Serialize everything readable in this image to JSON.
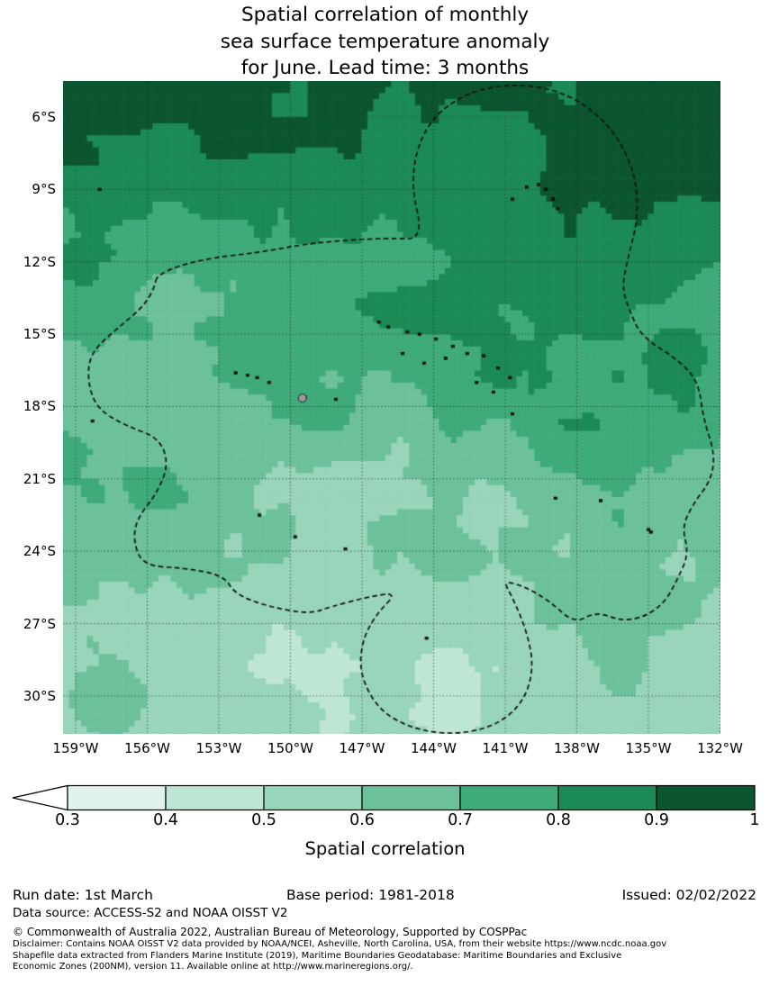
{
  "title": {
    "line1": "Spatial correlation of monthly",
    "line2": "sea surface temperature anomaly",
    "line3": "for June. Lead time: 3 months"
  },
  "axes": {
    "lat_labels": [
      "6°S",
      "9°S",
      "12°S",
      "15°S",
      "18°S",
      "21°S",
      "24°S",
      "27°S",
      "30°S"
    ],
    "lon_labels": [
      "159°W",
      "156°W",
      "153°W",
      "150°W",
      "147°W",
      "144°W",
      "141°W",
      "138°W",
      "135°W",
      "132°W"
    ]
  },
  "colorbar": {
    "label": "Spatial correlation",
    "tick_labels": [
      "0.3",
      "0.4",
      "0.5",
      "0.6",
      "0.7",
      "0.8",
      "0.9",
      "1"
    ],
    "arrow_color": "#ffffff",
    "border_color": "#000000"
  },
  "footer": {
    "run_date": "Run date: 1st March",
    "base_period": "Base period: 1981-2018",
    "issued": "Issued: 02/02/2022",
    "data_source": "Data source: ACCESS-S2 and NOAA OISST V2",
    "copyright": "© Commonwealth of Australia 2022, Australian Bureau of Meteorology, Supported by COSPPac",
    "disclaimer1": "Disclaimer: Contains NOAA OISST V2 data provided by NOAA/NCEI, Asheville, North Carolina, USA, from their website https://www.ncdc.noaa.gov",
    "disclaimer2": "Shapefile data extracted from Flanders Marine Institute (2019), Maritime Boundaries Geodatabase: Maritime Boundaries and Exclusive",
    "disclaimer3": "Economic Zones (200NM), version 11. Available online at http://www.marineregions.org/."
  },
  "chart_data": {
    "type": "heatmap",
    "title": "Spatial correlation of monthly sea surface temperature anomaly for June. Lead time: 3 months",
    "month": "June",
    "lead_time_months": 3,
    "colorbar_label": "Spatial correlation",
    "levels": [
      0.3,
      0.4,
      0.5,
      0.6,
      0.7,
      0.8,
      0.9,
      1.0
    ],
    "level_colors": [
      "#dff3ec",
      "#bfe6d5",
      "#98d5ba",
      "#6cc19c",
      "#3faa7a",
      "#1c8a55",
      "#0b5530"
    ],
    "under_arrow_color": "#ffffff",
    "lon_range_w": [
      159.53,
      131.98
    ],
    "lat_range_s": [
      4.51,
      31.57
    ],
    "lon_ticks_w": [
      159,
      156,
      153,
      150,
      147,
      144,
      141,
      138,
      135,
      132
    ],
    "lat_ticks_s": [
      6,
      9,
      12,
      15,
      18,
      21,
      24,
      27,
      30
    ],
    "grid": true,
    "lat_band_mean_correlation": {
      "5S": 0.87,
      "10S": 0.82,
      "15S": 0.75,
      "20S": 0.66,
      "25S": 0.59,
      "30S": 0.54
    },
    "eez_boundary_lonw_lats": [
      [
        155.6,
        12.5
      ],
      [
        153.8,
        11.9
      ],
      [
        151.2,
        11.6
      ],
      [
        149.0,
        11.2
      ],
      [
        145.9,
        11.0
      ],
      [
        144.4,
        11.1
      ],
      [
        145.0,
        8.6
      ],
      [
        144.4,
        6.4
      ],
      [
        142.9,
        5.1
      ],
      [
        140.9,
        4.6
      ],
      [
        138.6,
        4.9
      ],
      [
        136.7,
        6.2
      ],
      [
        135.6,
        8.1
      ],
      [
        135.4,
        10.1
      ],
      [
        135.9,
        12.0
      ],
      [
        136.1,
        13.1
      ],
      [
        135.8,
        14.0
      ],
      [
        135.3,
        15.1
      ],
      [
        133.7,
        16.1
      ],
      [
        132.9,
        17.0
      ],
      [
        132.7,
        18.5
      ],
      [
        132.2,
        20.0
      ],
      [
        132.4,
        21.1
      ],
      [
        133.1,
        22.0
      ],
      [
        133.6,
        23.0
      ],
      [
        133.3,
        24.1
      ],
      [
        133.8,
        25.2
      ],
      [
        134.3,
        26.1
      ],
      [
        135.1,
        26.7
      ],
      [
        136.1,
        26.9
      ],
      [
        137.2,
        26.5
      ],
      [
        138.1,
        27.0
      ],
      [
        139.1,
        26.1
      ],
      [
        140.1,
        25.5
      ],
      [
        141.1,
        25.2
      ],
      [
        140.7,
        25.9
      ],
      [
        140.1,
        27.3
      ],
      [
        139.8,
        28.8
      ],
      [
        140.2,
        30.2
      ],
      [
        141.3,
        31.2
      ],
      [
        143.0,
        31.6
      ],
      [
        144.8,
        31.4
      ],
      [
        146.3,
        30.6
      ],
      [
        147.1,
        29.1
      ],
      [
        147.0,
        27.7
      ],
      [
        146.4,
        26.6
      ],
      [
        145.5,
        25.7
      ],
      [
        146.8,
        25.9
      ],
      [
        148.3,
        26.3
      ],
      [
        149.2,
        26.6
      ],
      [
        150.9,
        26.3
      ],
      [
        152.3,
        25.8
      ],
      [
        152.8,
        25.0
      ],
      [
        154.4,
        24.7
      ],
      [
        156.2,
        24.6
      ],
      [
        156.6,
        23.5
      ],
      [
        156.4,
        22.6
      ],
      [
        155.6,
        21.6
      ],
      [
        155.1,
        20.4
      ],
      [
        155.5,
        19.3
      ],
      [
        156.9,
        18.8
      ],
      [
        158.1,
        18.1
      ],
      [
        158.5,
        17.0
      ],
      [
        158.4,
        15.8
      ],
      [
        157.3,
        14.8
      ],
      [
        156.2,
        13.9
      ],
      [
        155.7,
        13.1
      ]
    ],
    "islands_lonw_lats": [
      [
        140.1,
        8.9
      ],
      [
        139.6,
        8.8
      ],
      [
        139.3,
        9.0
      ],
      [
        139.0,
        9.4
      ],
      [
        138.8,
        9.8
      ],
      [
        140.7,
        9.4
      ],
      [
        146.3,
        14.5
      ],
      [
        145.9,
        14.7
      ],
      [
        145.1,
        14.9
      ],
      [
        144.6,
        15.0
      ],
      [
        143.9,
        15.2
      ],
      [
        143.2,
        15.5
      ],
      [
        142.6,
        15.8
      ],
      [
        141.9,
        15.9
      ],
      [
        141.3,
        16.4
      ],
      [
        140.8,
        16.8
      ],
      [
        143.5,
        16.0
      ],
      [
        144.4,
        16.2
      ],
      [
        145.3,
        15.8
      ],
      [
        142.2,
        17.0
      ],
      [
        141.5,
        17.4
      ],
      [
        140.7,
        18.3
      ],
      [
        152.3,
        16.6
      ],
      [
        151.8,
        16.7
      ],
      [
        151.4,
        16.8
      ],
      [
        150.9,
        17.0
      ],
      [
        149.4,
        17.6
      ],
      [
        148.1,
        17.7
      ],
      [
        138.9,
        21.8
      ],
      [
        137.0,
        21.9
      ],
      [
        135.0,
        23.1
      ],
      [
        134.9,
        23.2
      ],
      [
        151.3,
        22.5
      ],
      [
        149.8,
        23.4
      ],
      [
        147.7,
        23.9
      ],
      [
        144.3,
        27.6
      ],
      [
        158.0,
        9.0
      ],
      [
        158.3,
        18.6
      ]
    ],
    "tahiti_marker_lonw_lat": [
      149.5,
      17.65
    ]
  }
}
